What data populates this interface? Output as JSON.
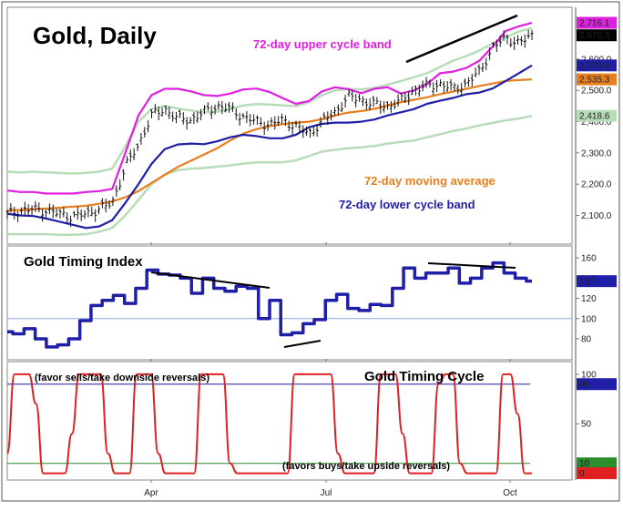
{
  "chart_data": [
    {
      "type": "ohlc",
      "title": "Gold, Daily",
      "x_ticks": [
        "Apr",
        "Jul",
        "Oct"
      ],
      "y_ticks": [
        2100,
        2200,
        2300,
        2400,
        2500,
        2600
      ],
      "y_tick_labels": [
        "2,100.0",
        "2,200.0",
        "2,300.0",
        "2,400.0",
        "2,500.0",
        "2,600.0"
      ],
      "ylim": [
        2020,
        2760
      ],
      "value_tags": [
        {
          "label": "2,716.1",
          "value": 2716.1,
          "color": "#e020e0"
        },
        {
          "label": "2,676.3",
          "value": 2676.3,
          "color": "#000000"
        },
        {
          "label": "2,579.9",
          "value": 2579.9,
          "color": "#1f1fa8"
        },
        {
          "label": "2,535.3",
          "value": 2535.3,
          "color": "#e87f1e"
        },
        {
          "label": "2,418.6",
          "value": 2418.6,
          "color": "#b8dcb8"
        }
      ],
      "annotations": {
        "upper_band": "72-day upper cycle band",
        "moving_average": "72-day moving average",
        "lower_band": "72-day lower cycle band"
      },
      "series": [
        {
          "name": "72-day upper cycle band",
          "color": "#e020e0",
          "values": [
            2180,
            2175,
            2175,
            2170,
            2170,
            2170,
            2175,
            2178,
            2185,
            2300,
            2420,
            2485,
            2505,
            2505,
            2497,
            2485,
            2482,
            2490,
            2503,
            2506,
            2495,
            2475,
            2457,
            2466,
            2497,
            2510,
            2504,
            2491,
            2505,
            2510,
            2490,
            2500,
            2520,
            2555,
            2560,
            2572,
            2595,
            2640,
            2690,
            2705,
            2716
          ]
        },
        {
          "name": "72-day moving average",
          "color": "#e87f1e",
          "values": [
            2115,
            2118,
            2120,
            2122,
            2125,
            2128,
            2131,
            2137,
            2145,
            2158,
            2178,
            2204,
            2230,
            2255,
            2275,
            2295,
            2315,
            2340,
            2362,
            2376,
            2386,
            2392,
            2397,
            2400,
            2408,
            2420,
            2429,
            2434,
            2441,
            2452,
            2462,
            2470,
            2478,
            2488,
            2496,
            2505,
            2514,
            2522,
            2530,
            2533,
            2535
          ]
        },
        {
          "name": "72-day lower cycle band",
          "color": "#1f1fa8",
          "values": [
            2105,
            2100,
            2098,
            2090,
            2080,
            2070,
            2060,
            2065,
            2085,
            2140,
            2200,
            2265,
            2312,
            2327,
            2330,
            2328,
            2337,
            2350,
            2358,
            2354,
            2347,
            2347,
            2358,
            2382,
            2393,
            2397,
            2397,
            2400,
            2407,
            2420,
            2430,
            2440,
            2457,
            2467,
            2476,
            2488,
            2493,
            2506,
            2530,
            2555,
            2580
          ]
        },
        {
          "name": "upper outer envelope",
          "color": "#b8dcb8",
          "values": [
            2240,
            2238,
            2240,
            2238,
            2236,
            2234,
            2236,
            2240,
            2250,
            2320,
            2400,
            2440,
            2450,
            2442,
            2436,
            2430,
            2432,
            2440,
            2452,
            2456,
            2455,
            2452,
            2450,
            2462,
            2485,
            2500,
            2505,
            2503,
            2508,
            2518,
            2530,
            2542,
            2555,
            2575,
            2595,
            2610,
            2628,
            2650,
            2670,
            2688,
            2700
          ]
        },
        {
          "name": "lower outer envelope",
          "color": "#b8dcb8",
          "values": [
            2040,
            2040,
            2040,
            2040,
            2038,
            2038,
            2040,
            2048,
            2060,
            2100,
            2150,
            2200,
            2230,
            2245,
            2250,
            2252,
            2256,
            2260,
            2266,
            2270,
            2270,
            2270,
            2276,
            2290,
            2304,
            2310,
            2315,
            2318,
            2322,
            2330,
            2335,
            2340,
            2350,
            2360,
            2370,
            2378,
            2388,
            2396,
            2404,
            2410,
            2418
          ]
        }
      ],
      "close": [
        2105,
        2115,
        2120,
        2115,
        2105,
        2095,
        2105,
        2120,
        2140,
        2255,
        2325,
        2420,
        2440,
        2410,
        2405,
        2430,
        2450,
        2440,
        2415,
        2400,
        2390,
        2405,
        2385,
        2360,
        2400,
        2430,
        2480,
        2470,
        2455,
        2450,
        2465,
        2500,
        2515,
        2520,
        2505,
        2520,
        2560,
        2635,
        2670,
        2650,
        2676
      ]
    },
    {
      "type": "line",
      "title": "Gold Timing Index",
      "y_ticks": [
        80,
        100,
        120,
        140,
        160
      ],
      "ylim": [
        62,
        170
      ],
      "value_tag": {
        "label": "137",
        "value": 137,
        "color": "#1f1fa8"
      },
      "series": [
        {
          "name": "Gold Timing Index",
          "color": "#1f1fa8",
          "values": [
            87,
            85,
            90,
            80,
            72,
            74,
            80,
            98,
            113,
            118,
            123,
            115,
            130,
            148,
            144,
            143,
            140,
            125,
            140,
            130,
            127,
            132,
            130,
            100,
            118,
            84,
            86,
            95,
            99,
            118,
            124,
            110,
            108,
            114,
            113,
            130,
            150,
            140,
            145,
            145,
            150,
            135,
            140,
            150,
            155,
            145,
            140,
            137
          ]
        }
      ]
    },
    {
      "type": "line",
      "title": "Gold Timing Cycle",
      "y_ticks": [
        50,
        100
      ],
      "ylim": [
        -5,
        110
      ],
      "value_tags": [
        {
          "label": "90",
          "value": 90,
          "color": "#1f1fa8"
        },
        {
          "label": "10",
          "value": 10,
          "color": "#2a8c2a"
        },
        {
          "label": "0",
          "value": 0,
          "color": "#e02020"
        }
      ],
      "annotations": {
        "top": "(favor sells/take downside reversals)",
        "bottom": "(favors buys/take upside reversals)"
      },
      "series": [
        {
          "name": "Gold Timing Cycle",
          "color": "#e02020",
          "values": [
            20,
            100,
            100,
            100,
            70,
            0,
            0,
            0,
            0,
            40,
            100,
            100,
            100,
            100,
            20,
            0,
            0,
            0,
            100,
            100,
            100,
            20,
            0,
            0,
            0,
            0,
            0,
            100,
            100,
            100,
            100,
            10,
            0,
            0,
            0,
            0,
            0,
            0,
            0,
            0,
            100,
            100,
            100,
            100,
            100,
            100,
            20,
            0,
            0,
            0,
            0,
            0,
            100,
            100,
            100,
            40,
            0,
            0,
            0,
            0,
            90,
            100,
            100,
            10,
            0,
            0,
            0,
            0,
            0,
            100,
            100,
            60,
            0,
            0
          ]
        }
      ]
    }
  ]
}
